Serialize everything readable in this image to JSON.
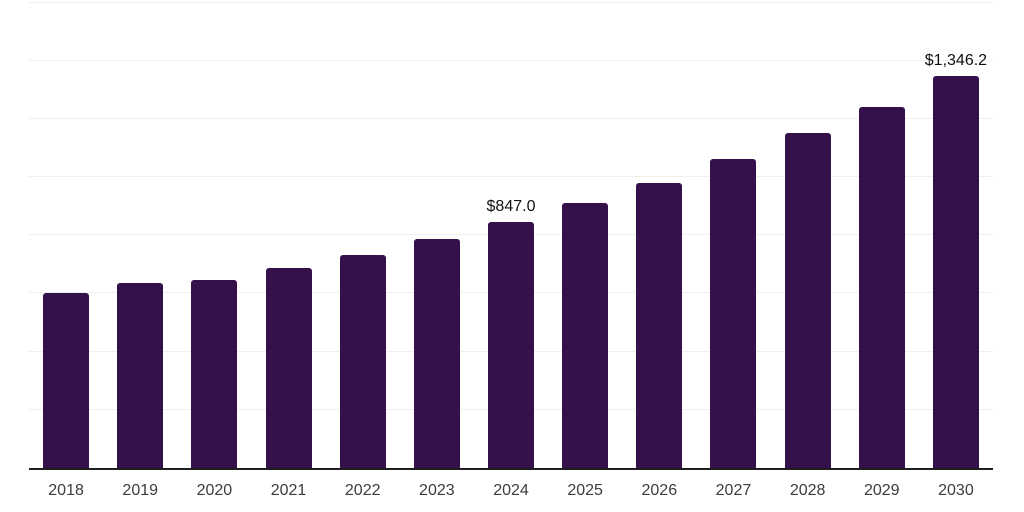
{
  "page": {
    "background": "#FFFFFF"
  },
  "chart_data": {
    "type": "bar",
    "title": "",
    "xlabel": "",
    "ylabel": "",
    "categories": [
      "2018",
      "2019",
      "2020",
      "2021",
      "2022",
      "2023",
      "2024",
      "2025",
      "2026",
      "2027",
      "2028",
      "2029",
      "2030"
    ],
    "values": [
      603,
      637,
      646,
      687,
      733,
      787,
      847.0,
      911,
      978,
      1061,
      1150,
      1241,
      1346.2
    ],
    "data_labels": [
      null,
      null,
      null,
      null,
      null,
      null,
      "$847.0",
      null,
      null,
      null,
      null,
      null,
      "$1,346.2"
    ],
    "ylim": [
      0,
      1600
    ],
    "gridline_step": 200,
    "grid": "horizontal",
    "legend_position": "none",
    "y_axis_tick_labels_visible": false,
    "colors": {
      "bar": "#35114B",
      "gridline": "#EFEFEF",
      "axis": "#1F1F1F",
      "tick_label": "#3C3C3C",
      "data_label": "#111111",
      "background": "#FFFFFF"
    }
  }
}
